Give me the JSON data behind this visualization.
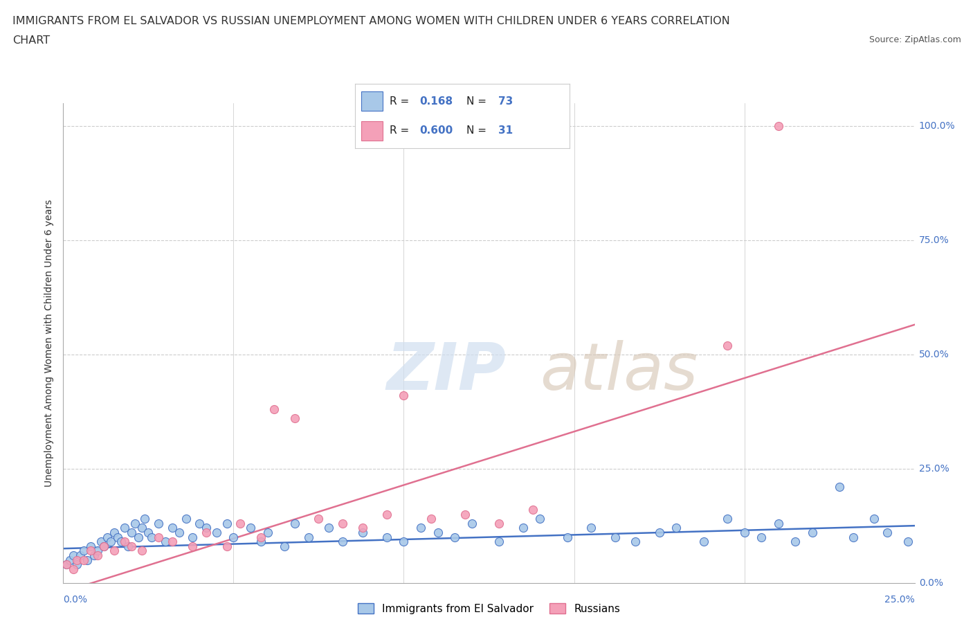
{
  "title_line1": "IMMIGRANTS FROM EL SALVADOR VS RUSSIAN UNEMPLOYMENT AMONG WOMEN WITH CHILDREN UNDER 6 YEARS CORRELATION",
  "title_line2": "CHART",
  "source": "Source: ZipAtlas.com",
  "ylabel": "Unemployment Among Women with Children Under 6 years",
  "legend_label1": "Immigrants from El Salvador",
  "legend_label2": "Russians",
  "R1": "0.168",
  "N1": "73",
  "R2": "0.600",
  "N2": "31",
  "color_blue": "#a8c8e8",
  "color_pink": "#f4a0b8",
  "color_blue_dark": "#4472c4",
  "color_pink_dark": "#e07090",
  "watermark_zip": "ZIP",
  "watermark_atlas": "atlas",
  "blue_scatter_x": [
    0.001,
    0.002,
    0.003,
    0.004,
    0.005,
    0.006,
    0.007,
    0.008,
    0.009,
    0.01,
    0.011,
    0.012,
    0.013,
    0.014,
    0.015,
    0.016,
    0.017,
    0.018,
    0.019,
    0.02,
    0.021,
    0.022,
    0.023,
    0.024,
    0.025,
    0.026,
    0.028,
    0.03,
    0.032,
    0.034,
    0.036,
    0.038,
    0.04,
    0.042,
    0.045,
    0.048,
    0.05,
    0.055,
    0.058,
    0.06,
    0.065,
    0.068,
    0.072,
    0.078,
    0.082,
    0.088,
    0.095,
    0.1,
    0.105,
    0.11,
    0.115,
    0.12,
    0.128,
    0.135,
    0.14,
    0.148,
    0.155,
    0.162,
    0.168,
    0.175,
    0.18,
    0.188,
    0.195,
    0.2,
    0.205,
    0.21,
    0.215,
    0.22,
    0.228,
    0.232,
    0.238,
    0.242,
    0.248
  ],
  "blue_scatter_y": [
    0.04,
    0.05,
    0.06,
    0.04,
    0.06,
    0.07,
    0.05,
    0.08,
    0.06,
    0.07,
    0.09,
    0.08,
    0.1,
    0.09,
    0.11,
    0.1,
    0.09,
    0.12,
    0.08,
    0.11,
    0.13,
    0.1,
    0.12,
    0.14,
    0.11,
    0.1,
    0.13,
    0.09,
    0.12,
    0.11,
    0.14,
    0.1,
    0.13,
    0.12,
    0.11,
    0.13,
    0.1,
    0.12,
    0.09,
    0.11,
    0.08,
    0.13,
    0.1,
    0.12,
    0.09,
    0.11,
    0.1,
    0.09,
    0.12,
    0.11,
    0.1,
    0.13,
    0.09,
    0.12,
    0.14,
    0.1,
    0.12,
    0.1,
    0.09,
    0.11,
    0.12,
    0.09,
    0.14,
    0.11,
    0.1,
    0.13,
    0.09,
    0.11,
    0.21,
    0.1,
    0.14,
    0.11,
    0.09
  ],
  "pink_scatter_x": [
    0.001,
    0.003,
    0.004,
    0.006,
    0.008,
    0.01,
    0.012,
    0.015,
    0.018,
    0.02,
    0.023,
    0.028,
    0.032,
    0.038,
    0.042,
    0.048,
    0.052,
    0.058,
    0.062,
    0.068,
    0.075,
    0.082,
    0.088,
    0.095,
    0.1,
    0.108,
    0.118,
    0.128,
    0.138,
    0.195,
    0.21
  ],
  "pink_scatter_y": [
    0.04,
    0.03,
    0.05,
    0.05,
    0.07,
    0.06,
    0.08,
    0.07,
    0.09,
    0.08,
    0.07,
    0.1,
    0.09,
    0.08,
    0.11,
    0.08,
    0.13,
    0.1,
    0.38,
    0.36,
    0.14,
    0.13,
    0.12,
    0.15,
    0.41,
    0.14,
    0.15,
    0.13,
    0.16,
    0.52,
    1.0
  ],
  "xlim": [
    0.0,
    0.25
  ],
  "ylim": [
    0.0,
    1.05
  ],
  "blue_line_x": [
    0.0,
    0.25
  ],
  "blue_line_y": [
    0.075,
    0.125
  ],
  "pink_line_x": [
    0.0,
    0.25
  ],
  "pink_line_y": [
    -0.02,
    0.565
  ]
}
